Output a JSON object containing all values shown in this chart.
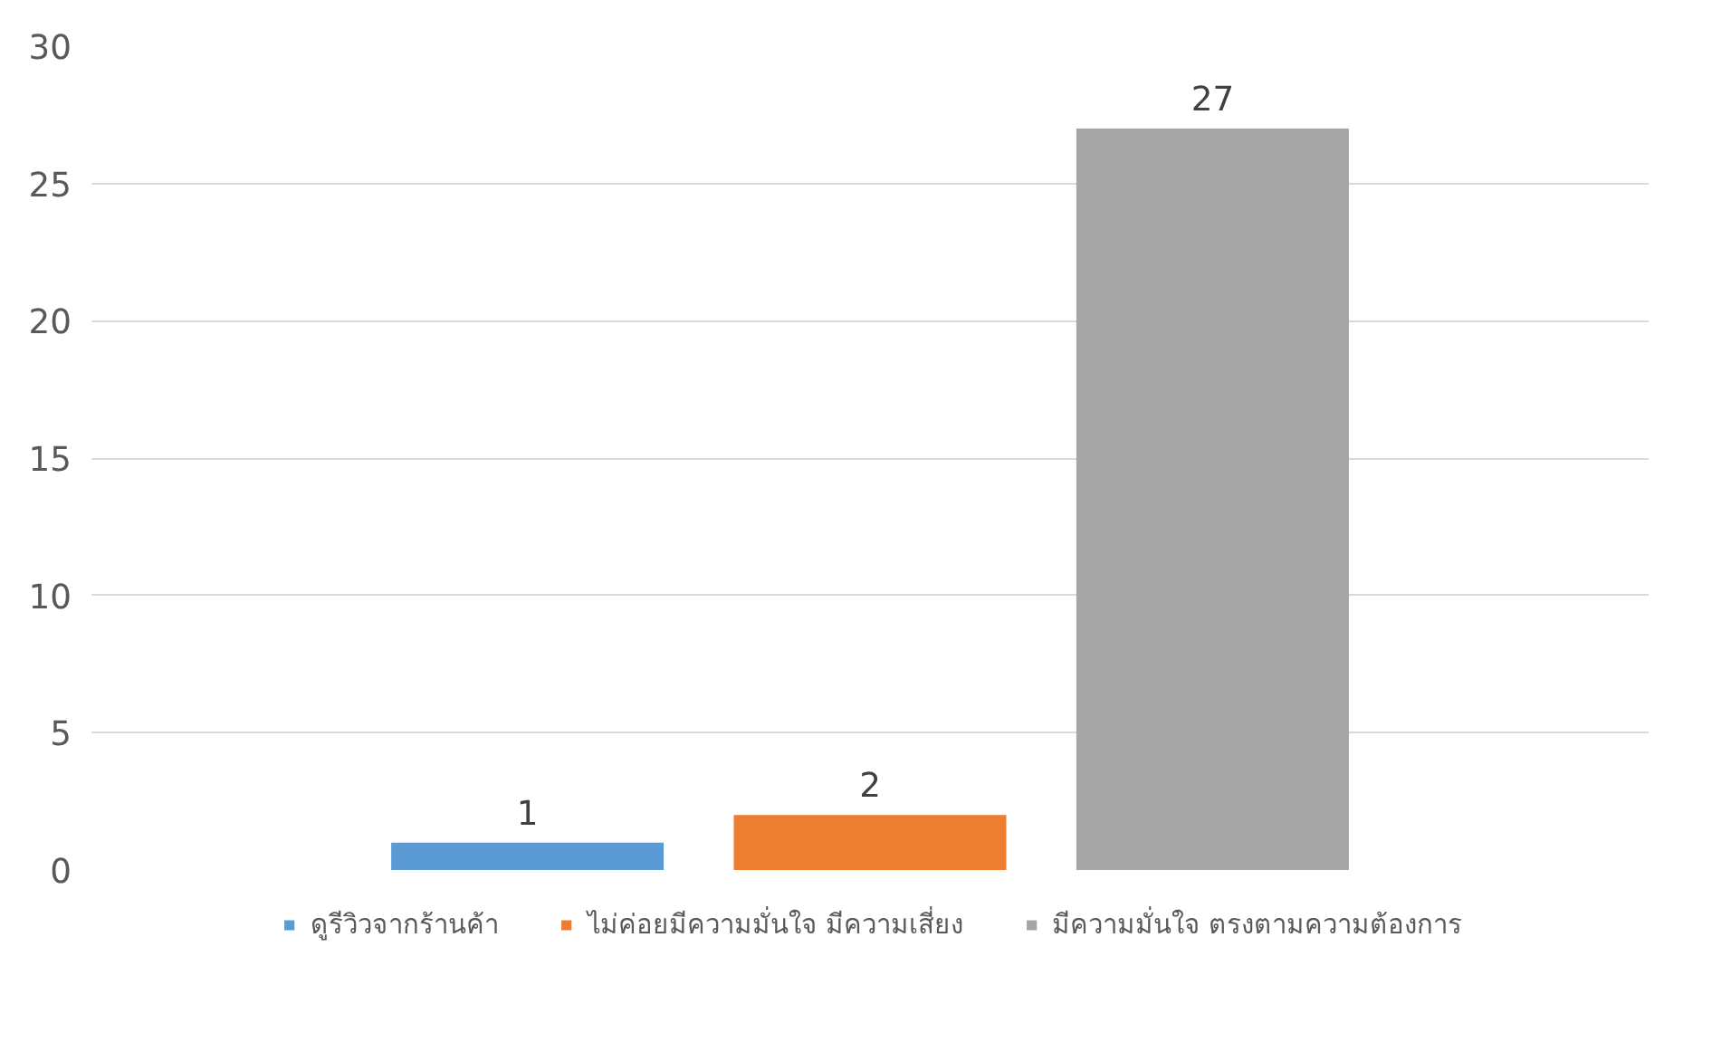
{
  "chart_data": {
    "type": "bar",
    "categories": [
      null
    ],
    "series": [
      {
        "name": "ดูรีวิวจากร้านค้า",
        "color": "#5b9bd5",
        "values": [
          1
        ]
      },
      {
        "name": "ไม่ค่อยมีความมั่นใจ มีความเสี่ยง",
        "color": "#ed7d31",
        "values": [
          2
        ]
      },
      {
        "name": "มีความมั่นใจ ตรงตามความต้องการ",
        "color": "#a5a5a5",
        "values": [
          27
        ]
      }
    ],
    "ylim": [
      0,
      30
    ],
    "yticks": [
      0,
      5,
      10,
      15,
      20,
      25,
      30
    ],
    "grid": "y",
    "legend": "bottom",
    "data_labels": true
  }
}
